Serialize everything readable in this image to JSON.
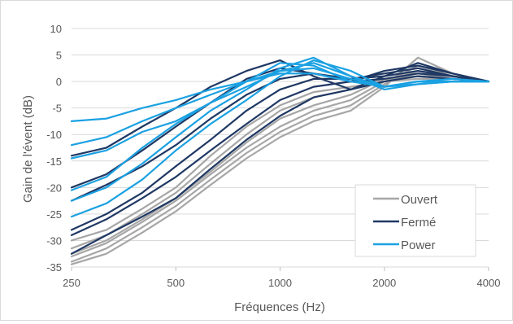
{
  "chart_data": {
    "type": "line",
    "title": "",
    "xlabel": "Fréquences (Hz)",
    "ylabel": "Gain de l'évent (dB)",
    "x_scale": "log",
    "xlim": [
      250,
      4000
    ],
    "ylim": [
      -35,
      10
    ],
    "x_ticks": [
      "250",
      "500",
      "1000",
      "2000",
      "4000"
    ],
    "y_ticks": [
      "10",
      "5",
      "0",
      "-5",
      "-10",
      "-15",
      "-20",
      "-25",
      "-30",
      "-35"
    ],
    "grid": "horizontal",
    "legend_position": "bottom-right",
    "x": [
      250,
      315,
      400,
      500,
      630,
      800,
      1000,
      1250,
      1600,
      2000,
      2500,
      3150,
      4000
    ],
    "series": [
      {
        "name": "Ouvert",
        "color": "#a6a6a6",
        "values": [
          -34.5,
          -32.5,
          -28.5,
          -24.5,
          -19.5,
          -14.5,
          -10.5,
          -7.5,
          -5.5,
          -1,
          4.5,
          1.5,
          0
        ]
      },
      {
        "values": [
          -34,
          -31.5,
          -27.5,
          -23.5,
          -18.5,
          -13.5,
          -9.5,
          -6.5,
          -4.5,
          -0.5,
          3,
          1,
          0
        ]
      },
      {
        "values": [
          -33,
          -30.5,
          -26.5,
          -22.5,
          -17.5,
          -12.5,
          -8.5,
          -5.5,
          -3.5,
          0,
          2,
          1,
          0
        ]
      },
      {
        "values": [
          -32.5,
          -30,
          -26,
          -22,
          -17,
          -11.5,
          -7,
          -4.5,
          -2.5,
          0.5,
          1.5,
          0.5,
          0
        ]
      },
      {
        "values": [
          -31.5,
          -29,
          -25,
          -21,
          -15.5,
          -10,
          -5.5,
          -3,
          -1.5,
          0.5,
          1,
          0.5,
          0
        ]
      },
      {
        "values": [
          -30,
          -28,
          -24,
          -20,
          -14,
          -8.5,
          -4.5,
          -2,
          -1,
          0,
          0.5,
          0.5,
          0
        ]
      },
      {
        "name": "Fermé",
        "color": "#1f3864",
        "values": [
          -32.5,
          -29,
          -25.5,
          -22,
          -16.5,
          -11,
          -6.5,
          -3,
          -1.5,
          1,
          3.5,
          1.5,
          0
        ]
      },
      {
        "values": [
          -29,
          -26,
          -22,
          -18,
          -13,
          -8,
          -3.5,
          -1,
          0,
          2,
          3,
          1.5,
          0
        ]
      },
      {
        "values": [
          -28,
          -25,
          -21,
          -16,
          -11,
          -5.5,
          -1.5,
          0.5,
          0.5,
          1.5,
          2.5,
          1,
          0
        ]
      },
      {
        "values": [
          -22.5,
          -19.5,
          -16,
          -12,
          -7,
          -2.5,
          0.5,
          1.5,
          0.5,
          1,
          2,
          1,
          0
        ]
      },
      {
        "values": [
          -20,
          -17.5,
          -13,
          -8.5,
          -4,
          0.5,
          2.5,
          1.5,
          0,
          0.5,
          1.5,
          1,
          0
        ]
      },
      {
        "values": [
          -14,
          -12.5,
          -8.5,
          -5,
          -1,
          2,
          4,
          1,
          -1.5,
          0,
          1,
          0.5,
          0
        ]
      },
      {
        "name": "Power",
        "color": "#1ba1e2",
        "values": [
          -25.5,
          -23,
          -18.5,
          -13,
          -8,
          -3.5,
          1,
          4,
          2,
          -1,
          0,
          0.5,
          0
        ]
      },
      {
        "values": [
          -22.5,
          -20,
          -15.5,
          -10.5,
          -5.5,
          -1.5,
          2.5,
          4.5,
          1,
          -1.5,
          -0.5,
          0,
          0
        ]
      },
      {
        "values": [
          -20.5,
          -18,
          -12.5,
          -8,
          -4,
          0,
          3.5,
          3,
          0,
          -1,
          0,
          0,
          0
        ]
      },
      {
        "values": [
          -14.5,
          -13,
          -9.5,
          -7.5,
          -4,
          -1,
          2,
          3.5,
          1,
          -1,
          0,
          0,
          0
        ]
      },
      {
        "values": [
          -12,
          -10.5,
          -7.5,
          -5,
          -2.5,
          0,
          2,
          2.5,
          0.5,
          -1,
          -0.5,
          0,
          0
        ]
      },
      {
        "values": [
          -7.5,
          -7,
          -5,
          -3.5,
          -1.5,
          0,
          1.5,
          1.5,
          0,
          -1,
          0,
          0,
          0
        ]
      },
      {
        "values": [
          -4.5,
          -4.5,
          -4,
          -3,
          -1.5,
          0,
          1,
          1,
          0,
          -0.5,
          0,
          0,
          0
        ]
      }
    ]
  }
}
